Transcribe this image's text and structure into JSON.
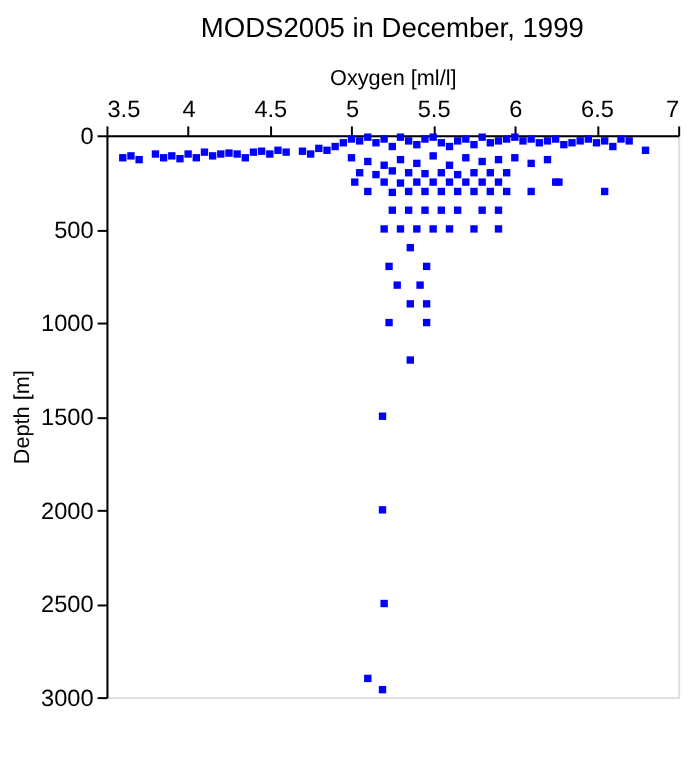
{
  "chart_data": {
    "type": "scatter",
    "title": "MODS2005 in December, 1999",
    "xlabel": "Oxygen [ml/l]",
    "ylabel": "Depth [m]",
    "xlim": [
      3.5,
      7
    ],
    "xticks": [
      3.5,
      4,
      4.5,
      5,
      5.5,
      6,
      6.5,
      7
    ],
    "ylim": [
      3000,
      0
    ],
    "yticks": [
      0,
      500,
      1000,
      1500,
      2000,
      2500,
      3000
    ],
    "grid": false,
    "marker": "square",
    "series": [
      {
        "color": "#0000ff",
        "x": [
          3.6,
          3.65,
          3.7,
          3.8,
          3.85,
          3.9,
          3.95,
          4.0,
          4.05,
          4.1,
          4.15,
          4.2,
          4.25,
          4.3,
          4.35,
          4.4,
          4.45,
          4.5,
          4.55,
          4.6,
          4.7,
          4.75,
          4.8,
          4.85,
          4.9,
          4.95,
          5.0,
          5.05,
          5.1,
          5.15,
          5.2,
          5.25,
          5.3,
          5.35,
          5.4,
          5.45,
          5.5,
          5.55,
          5.6,
          5.65,
          5.7,
          5.75,
          5.8,
          5.85,
          5.9,
          5.95,
          6.0,
          6.05,
          6.1,
          6.15,
          6.2,
          6.25,
          6.3,
          6.35,
          6.4,
          6.45,
          6.5,
          6.55,
          6.6,
          6.65,
          6.7,
          6.8,
          5.0,
          5.1,
          5.2,
          5.3,
          5.4,
          5.5,
          5.6,
          5.7,
          5.8,
          5.9,
          6.0,
          6.1,
          6.2,
          5.05,
          5.15,
          5.25,
          5.35,
          5.45,
          5.55,
          5.65,
          5.75,
          5.85,
          5.95,
          6.25,
          6.55,
          5.02,
          5.2,
          5.3,
          5.4,
          5.5,
          5.6,
          5.7,
          5.8,
          5.9,
          6.27,
          5.1,
          5.25,
          5.35,
          5.45,
          5.55,
          5.65,
          5.75,
          5.85,
          5.95,
          6.1,
          5.25,
          5.35,
          5.45,
          5.55,
          5.65,
          5.8,
          5.9,
          5.2,
          5.3,
          5.4,
          5.5,
          5.6,
          5.75,
          5.9,
          5.36,
          5.23,
          5.46,
          5.28,
          5.42,
          5.36,
          5.46,
          5.23,
          5.46,
          5.36,
          5.19,
          5.19,
          5.2,
          5.1,
          5.19
        ],
        "values": [
          120,
          110,
          130,
          100,
          120,
          110,
          125,
          100,
          120,
          90,
          110,
          100,
          95,
          100,
          120,
          90,
          85,
          100,
          80,
          90,
          85,
          100,
          70,
          80,
          60,
          40,
          20,
          30,
          10,
          40,
          20,
          60,
          10,
          30,
          50,
          20,
          10,
          40,
          60,
          30,
          20,
          50,
          10,
          40,
          30,
          20,
          10,
          30,
          20,
          40,
          30,
          20,
          50,
          40,
          30,
          20,
          40,
          30,
          60,
          20,
          30,
          80,
          120,
          140,
          160,
          130,
          150,
          110,
          160,
          120,
          140,
          130,
          120,
          150,
          130,
          200,
          210,
          190,
          200,
          205,
          200,
          210,
          200,
          200,
          200,
          250,
          300,
          250,
          250,
          255,
          250,
          250,
          250,
          250,
          250,
          250,
          250,
          300,
          305,
          300,
          300,
          300,
          300,
          300,
          300,
          300,
          300,
          400,
          400,
          400,
          400,
          400,
          400,
          400,
          500,
          500,
          500,
          500,
          500,
          500,
          500,
          600,
          700,
          700,
          800,
          800,
          900,
          900,
          1000,
          1000,
          1200,
          1500,
          2000,
          2500,
          2900,
          2960
        ]
      }
    ]
  }
}
